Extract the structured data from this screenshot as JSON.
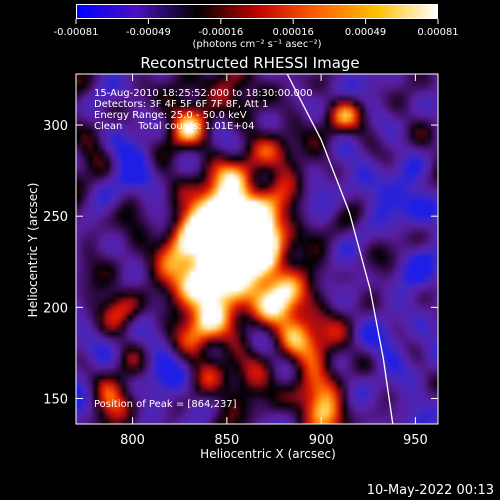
{
  "colorbar": {
    "tick_labels": [
      "-0.00081",
      "-0.00049",
      "-0.00016",
      "0.00016",
      "0.00049",
      "0.00081"
    ],
    "unit_label": "(photons cm⁻² s⁻¹ asec⁻²)",
    "colors": [
      "#0000ff",
      "#4a10c0",
      "#000000",
      "#c00000",
      "#ff6000",
      "#ffc000",
      "#ffffff"
    ]
  },
  "info": {
    "line1": "15-Aug-2010 18:25:52.000 to 18:30:00.000",
    "line2": "Detectors: 3F 4F 5F 6F 7F 8F, Att 1",
    "line3": "Energy Range: 25.0 - 50.0 keV",
    "line4": "Clean     Total counts: 1.01E+04",
    "peak": "Position of Peak = [864,237]"
  },
  "timestamp": "10-May-2022 00:13",
  "chart_data": {
    "type": "heatmap",
    "title": "Reconstructed RHESSI Image",
    "xlabel": "Heliocentric X (arcsec)",
    "ylabel": "Heliocentric Y (arcsec)",
    "xlim": [
      770,
      962
    ],
    "ylim": [
      136,
      328
    ],
    "x_ticks": [
      800,
      850,
      900,
      950
    ],
    "y_ticks": [
      150,
      200,
      250,
      300
    ],
    "peak": [
      864,
      237
    ],
    "limb_curve": [
      [
        882,
        328
      ],
      [
        900,
        292
      ],
      [
        915,
        252
      ],
      [
        926,
        210
      ],
      [
        933,
        172
      ],
      [
        938,
        136
      ]
    ],
    "bright_sources": [
      {
        "x": 864,
        "y": 240,
        "intensity": 1.0,
        "radius": 12
      },
      {
        "x": 852,
        "y": 234,
        "intensity": 0.75,
        "radius": 18
      },
      {
        "x": 846,
        "y": 252,
        "intensity": 0.6,
        "radius": 14
      },
      {
        "x": 858,
        "y": 270,
        "intensity": 0.45,
        "radius": 10
      },
      {
        "x": 842,
        "y": 210,
        "intensity": 0.55,
        "radius": 14
      },
      {
        "x": 870,
        "y": 210,
        "intensity": 0.5,
        "radius": 12
      },
      {
        "x": 884,
        "y": 194,
        "intensity": 0.45,
        "radius": 12
      },
      {
        "x": 836,
        "y": 188,
        "intensity": 0.45,
        "radius": 10
      },
      {
        "x": 860,
        "y": 160,
        "intensity": 0.4,
        "radius": 10
      },
      {
        "x": 894,
        "y": 150,
        "intensity": 0.4,
        "radius": 10
      },
      {
        "x": 900,
        "y": 178,
        "intensity": 0.35,
        "radius": 10
      },
      {
        "x": 822,
        "y": 222,
        "intensity": 0.35,
        "radius": 10
      },
      {
        "x": 802,
        "y": 242,
        "intensity": 0.3,
        "radius": 8
      },
      {
        "x": 830,
        "y": 300,
        "intensity": 0.45,
        "radius": 10
      },
      {
        "x": 850,
        "y": 320,
        "intensity": 0.35,
        "radius": 10
      },
      {
        "x": 880,
        "y": 285,
        "intensity": 0.35,
        "radius": 8
      },
      {
        "x": 912,
        "y": 305,
        "intensity": 0.55,
        "radius": 8
      },
      {
        "x": 905,
        "y": 140,
        "intensity": 0.3,
        "radius": 8
      },
      {
        "x": 795,
        "y": 200,
        "intensity": 0.25,
        "radius": 8
      },
      {
        "x": 790,
        "y": 150,
        "intensity": 0.2,
        "radius": 8
      }
    ],
    "dark_sources": [
      {
        "x": 950,
        "y": 255,
        "intensity": -0.8,
        "radius": 8
      },
      {
        "x": 955,
        "y": 218,
        "intensity": -0.5,
        "radius": 10
      },
      {
        "x": 930,
        "y": 270,
        "intensity": -0.45,
        "radius": 12
      },
      {
        "x": 940,
        "y": 180,
        "intensity": -0.45,
        "radius": 12
      },
      {
        "x": 805,
        "y": 275,
        "intensity": -0.4,
        "radius": 12
      },
      {
        "x": 785,
        "y": 240,
        "intensity": -0.35,
        "radius": 10
      },
      {
        "x": 920,
        "y": 320,
        "intensity": -0.3,
        "radius": 10
      },
      {
        "x": 780,
        "y": 180,
        "intensity": -0.3,
        "radius": 10
      },
      {
        "x": 950,
        "y": 145,
        "intensity": -0.35,
        "radius": 10
      },
      {
        "x": 815,
        "y": 160,
        "intensity": -0.3,
        "radius": 8
      }
    ]
  }
}
